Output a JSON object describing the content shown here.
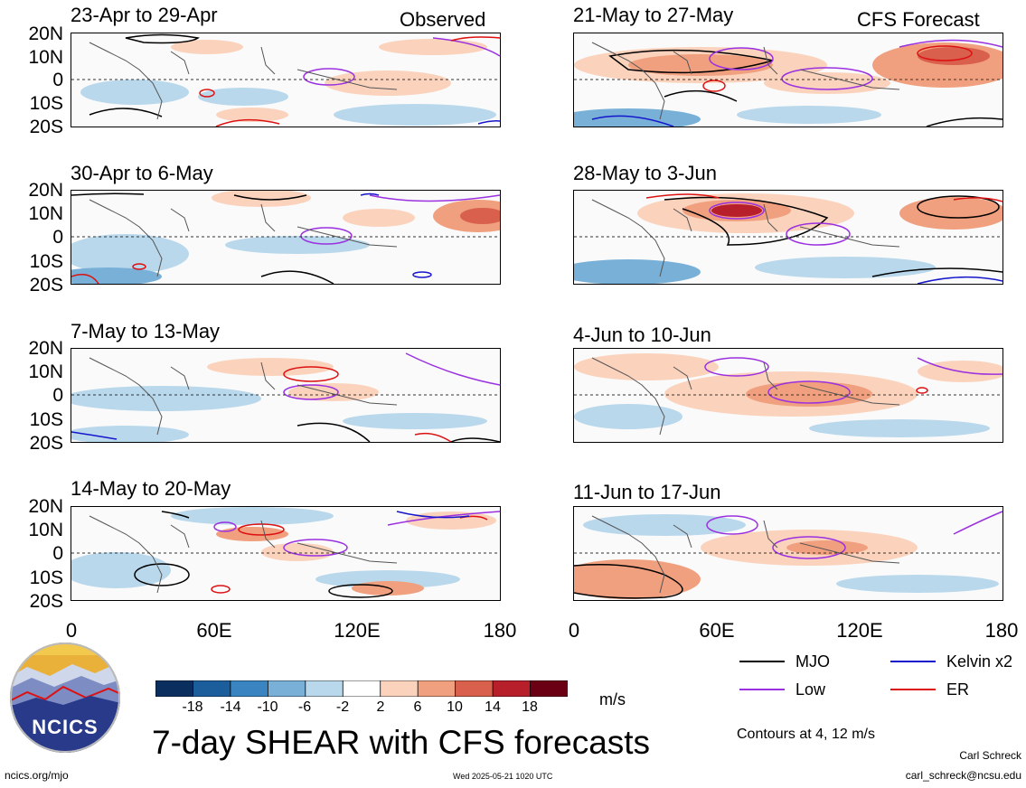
{
  "header": {
    "left_label": "Observed",
    "right_label": "CFS Forecast"
  },
  "panels": [
    {
      "id": "obs1",
      "title": "23-Apr to 29-Apr"
    },
    {
      "id": "obs2",
      "title": "30-Apr to 6-May"
    },
    {
      "id": "obs3",
      "title": "7-May to 13-May"
    },
    {
      "id": "obs4",
      "title": "14-May to 20-May"
    },
    {
      "id": "fc1",
      "title": "21-May to 27-May"
    },
    {
      "id": "fc2",
      "title": "28-May to 3-Jun"
    },
    {
      "id": "fc3",
      "title": "4-Jun to 10-Jun"
    },
    {
      "id": "fc4",
      "title": "11-Jun to 17-Jun"
    }
  ],
  "y_axis_labels": [
    "20N",
    "10N",
    "0",
    "10S",
    "20S"
  ],
  "x_axis_labels": [
    "0",
    "60E",
    "120E",
    "180"
  ],
  "colorbar": {
    "labels": [
      "-18",
      "-14",
      "-10",
      "-6",
      "-2",
      "2",
      "6",
      "10",
      "14",
      "18"
    ],
    "units": "m/s",
    "colors": [
      "#0a2f5e",
      "#1c5e9c",
      "#3a84c2",
      "#78b0d8",
      "#b9d8ec",
      "#ffffff",
      "#fbd3bd",
      "#f0a07e",
      "#d9604d",
      "#b71f2b",
      "#6b0014"
    ]
  },
  "legend": {
    "items": [
      {
        "label": "MJO",
        "color": "#000000"
      },
      {
        "label": "Kelvin x2",
        "color": "#1515cc"
      },
      {
        "label": "Low",
        "color": "#9b30e0"
      },
      {
        "label": "ER",
        "color": "#dd1111"
      }
    ],
    "contours_note": "Contours at 4, 12 m/s"
  },
  "main_title": "7-day SHEAR with CFS forecasts",
  "logo_text": "NCICS",
  "url": "ncics.org/mjo",
  "timestamp": "Wed 2025-05-21 1020 UTC",
  "author": "Carl Schreck",
  "email": "carl_schreck@ncsu.edu"
}
